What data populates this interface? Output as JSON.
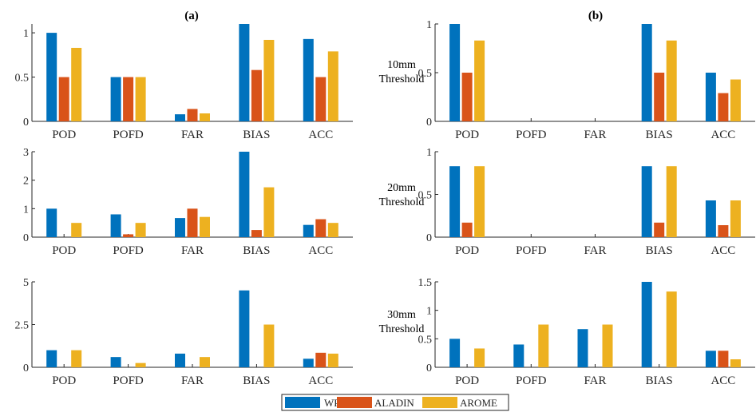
{
  "panel_titles": [
    "(a)",
    "(b)"
  ],
  "row_labels": [
    {
      "line1": "10mm",
      "line2": "Threshold"
    },
    {
      "line1": "20mm",
      "line2": "Threshold"
    },
    {
      "line1": "30mm",
      "line2": "Threshold"
    }
  ],
  "legend": [
    {
      "name": "WRF",
      "color": "#0072BD"
    },
    {
      "name": "ALADIN",
      "color": "#D95319"
    },
    {
      "name": "AROME",
      "color": "#EDB120"
    }
  ],
  "chart_data": [
    {
      "type": "bar",
      "panel": "a",
      "row": 1,
      "categories": [
        "POD",
        "POFD",
        "FAR",
        "BIAS",
        "ACC"
      ],
      "ylim": [
        0,
        1.1
      ],
      "yticks": [
        "0",
        "0.5",
        "1"
      ],
      "ytick_values": [
        0,
        0.5,
        1
      ],
      "series": [
        {
          "name": "WRF",
          "values": [
            1.0,
            0.5,
            0.08,
            1.1,
            0.93
          ]
        },
        {
          "name": "ALADIN",
          "values": [
            0.5,
            0.5,
            0.14,
            0.58,
            0.5
          ]
        },
        {
          "name": "AROME",
          "values": [
            0.83,
            0.5,
            0.09,
            0.92,
            0.79
          ]
        }
      ]
    },
    {
      "type": "bar",
      "panel": "a",
      "row": 2,
      "categories": [
        "POD",
        "POFD",
        "FAR",
        "BIAS",
        "ACC"
      ],
      "ylim": [
        0,
        3
      ],
      "yticks": [
        "0",
        "1",
        "2",
        "3"
      ],
      "ytick_values": [
        0,
        1,
        2,
        3
      ],
      "series": [
        {
          "name": "WRF",
          "values": [
            1.0,
            0.8,
            0.67,
            3.0,
            0.43
          ]
        },
        {
          "name": "ALADIN",
          "values": [
            0,
            0.1,
            1.0,
            0.25,
            0.63
          ]
        },
        {
          "name": "AROME",
          "values": [
            0.5,
            0.5,
            0.71,
            1.75,
            0.5
          ]
        }
      ]
    },
    {
      "type": "bar",
      "panel": "a",
      "row": 3,
      "categories": [
        "POD",
        "POFD",
        "FAR",
        "BIAS",
        "ACC"
      ],
      "ylim": [
        0,
        5
      ],
      "yticks": [
        "0",
        "2.5",
        "5"
      ],
      "ytick_values": [
        0,
        2.5,
        5
      ],
      "series": [
        {
          "name": "WRF",
          "values": [
            1.0,
            0.6,
            0.8,
            4.5,
            0.5
          ]
        },
        {
          "name": "ALADIN",
          "values": [
            0,
            0,
            0,
            0,
            0.85
          ]
        },
        {
          "name": "AROME",
          "values": [
            1.0,
            0.25,
            0.6,
            2.5,
            0.8
          ]
        }
      ]
    },
    {
      "type": "bar",
      "panel": "b",
      "row": 1,
      "categories": [
        "POD",
        "POFD",
        "FAR",
        "BIAS",
        "ACC"
      ],
      "ylim": [
        0,
        1
      ],
      "yticks": [
        "0",
        "0.5",
        "1"
      ],
      "ytick_values": [
        0,
        0.5,
        1
      ],
      "series": [
        {
          "name": "WRF",
          "values": [
            1.0,
            0,
            0,
            1.0,
            0.5
          ]
        },
        {
          "name": "ALADIN",
          "values": [
            0.5,
            0,
            0,
            0.5,
            0.29
          ]
        },
        {
          "name": "AROME",
          "values": [
            0.83,
            0,
            0,
            0.83,
            0.43
          ]
        }
      ]
    },
    {
      "type": "bar",
      "panel": "b",
      "row": 2,
      "categories": [
        "POD",
        "POFD",
        "FAR",
        "BIAS",
        "ACC"
      ],
      "ylim": [
        0,
        1
      ],
      "yticks": [
        "0",
        "0.5",
        "1"
      ],
      "ytick_values": [
        0,
        0.5,
        1
      ],
      "series": [
        {
          "name": "WRF",
          "values": [
            0.83,
            0,
            0,
            0.83,
            0.43
          ]
        },
        {
          "name": "ALADIN",
          "values": [
            0.17,
            0,
            0,
            0.17,
            0.14
          ]
        },
        {
          "name": "AROME",
          "values": [
            0.83,
            0,
            0,
            0.83,
            0.43
          ]
        }
      ]
    },
    {
      "type": "bar",
      "panel": "b",
      "row": 3,
      "categories": [
        "POD",
        "POFD",
        "FAR",
        "BIAS",
        "ACC"
      ],
      "ylim": [
        0,
        1.5
      ],
      "yticks": [
        "0",
        "0.5",
        "1",
        "1.5"
      ],
      "ytick_values": [
        0,
        0.5,
        1,
        1.5
      ],
      "series": [
        {
          "name": "WRF",
          "values": [
            0.5,
            0.4,
            0.67,
            1.5,
            0.29
          ]
        },
        {
          "name": "ALADIN",
          "values": [
            0,
            0,
            0,
            0,
            0.29
          ]
        },
        {
          "name": "AROME",
          "values": [
            0.33,
            0.75,
            0.75,
            1.33,
            0.14
          ]
        }
      ]
    }
  ]
}
